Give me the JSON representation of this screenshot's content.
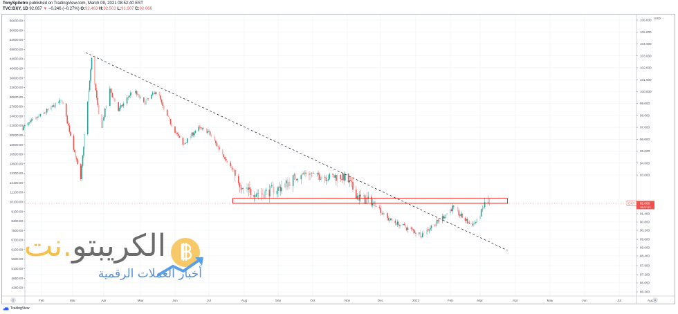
{
  "header": {
    "author": "TonySpilotro",
    "published": "published on TradingView.com, March 09, 2021 08:52:40 EST",
    "symbol": "TVC:DXY, 1D",
    "last": "92.067",
    "change_arrow": "▼",
    "change": "−0.246 (−0.27%)",
    "o_label": "O:",
    "o": "92.463",
    "h_label": "H:",
    "h": "92.503",
    "l_label": "L:",
    "l": "91.907",
    "c_label": "C:",
    "c": "92.066"
  },
  "footer": {
    "logo_text": "TradingView",
    "scale_button": "A",
    "timezone_button": "2"
  },
  "watermark": {
    "brand_gray": "الكريبتو",
    "brand_gold": ".نت",
    "tagline": "أخبار العملات الرقمية"
  },
  "colors": {
    "up": "#26a69a",
    "down": "#ef5350",
    "accent": "#ef5350",
    "grid": "#eef1f6"
  },
  "chart_data": {
    "type": "candlestick",
    "symbol": "DXY",
    "timeframe": "1D",
    "right_axis_unit": "USD",
    "right_axis_ticks": [
      "106.000",
      "105.000",
      "104.000",
      "103.000",
      "102.000",
      "101.000",
      "100.000",
      "99.000",
      "98.000",
      "97.000",
      "96.000",
      "95.000",
      "94.000",
      "93.000",
      "91.400",
      "90.800",
      "90.200",
      "89.600",
      "89.000",
      "88.400",
      "87.800",
      "87.200",
      "86.650",
      "86.300"
    ],
    "left_axis_ticks": [
      "66000.00",
      "60000.00",
      "54000.00",
      "48000.00",
      "44000.00",
      "40000.00",
      "36000.00",
      "33000.00",
      "30000.00",
      "27000.00",
      "24000.00",
      "22000.00",
      "20000.00",
      "18000.00",
      "16500.00",
      "14900.00",
      "13300.00",
      "12100.00",
      "11100.00",
      "10100.00",
      "9100.00",
      "8300.00",
      "7500.00",
      "6700.00",
      "6100.00",
      "5600.00",
      "5100.00",
      "4660.00",
      "4280.00"
    ],
    "x_ticks": [
      "Feb",
      "Mar",
      "Apr",
      "May",
      "Jun",
      "Jul",
      "Aug",
      "Sep",
      "Oct",
      "Nov",
      "Dec",
      "2021",
      "Feb",
      "Mar",
      "Apr",
      "May",
      "Jun",
      "Jul",
      "Aug"
    ],
    "price_tag": {
      "label": "DXY",
      "value": "92.066",
      "countdown": "18:07:22"
    },
    "path_closes": [
      [
        "2020-01-15",
        96.95
      ],
      [
        "2020-02-20",
        99.27
      ],
      [
        "2020-03-09",
        92.73
      ],
      [
        "2020-03-20",
        102.75
      ],
      [
        "2020-03-29",
        96.66
      ],
      [
        "2020-04-06",
        100.14
      ],
      [
        "2020-04-13",
        98.4
      ],
      [
        "2020-04-25",
        100.14
      ],
      [
        "2020-05-04",
        98.98
      ],
      [
        "2020-05-16",
        100.14
      ],
      [
        "2020-05-22",
        98.4
      ],
      [
        "2020-06-08",
        95.5
      ],
      [
        "2020-06-21",
        96.95
      ],
      [
        "2020-06-30",
        96.66
      ],
      [
        "2020-07-16",
        94.33
      ],
      [
        "2020-07-28",
        92.5
      ],
      [
        "2020-08-18",
        92.39
      ],
      [
        "2020-09-05",
        92.61
      ],
      [
        "2020-09-24",
        93.17
      ],
      [
        "2020-10-12",
        92.95
      ],
      [
        "2020-10-30",
        92.95
      ],
      [
        "2020-11-11",
        92.27
      ],
      [
        "2020-11-27",
        92.02
      ],
      [
        "2020-12-06",
        91.1
      ],
      [
        "2020-12-18",
        90.6
      ],
      [
        "2021-01-06",
        89.9
      ],
      [
        "2021-01-21",
        90.85
      ],
      [
        "2021-02-03",
        91.8
      ],
      [
        "2021-02-20",
        90.6
      ],
      [
        "2021-02-26",
        90.85
      ],
      [
        "2021-03-05",
        92.02
      ],
      [
        "2021-03-09",
        92.066
      ]
    ],
    "trendline": {
      "start": [
        "2020-03-14",
        103.27
      ],
      "end": [
        "2021-03-25",
        88.8
      ],
      "style": "dashed",
      "color": "#131722"
    },
    "resistance_zone": {
      "from": "2020-07-22",
      "to": "2021-03-25",
      "low": 92.09,
      "high": 92.23,
      "color": "#ff0000"
    },
    "current_price_line": 92.066,
    "grid": true
  }
}
